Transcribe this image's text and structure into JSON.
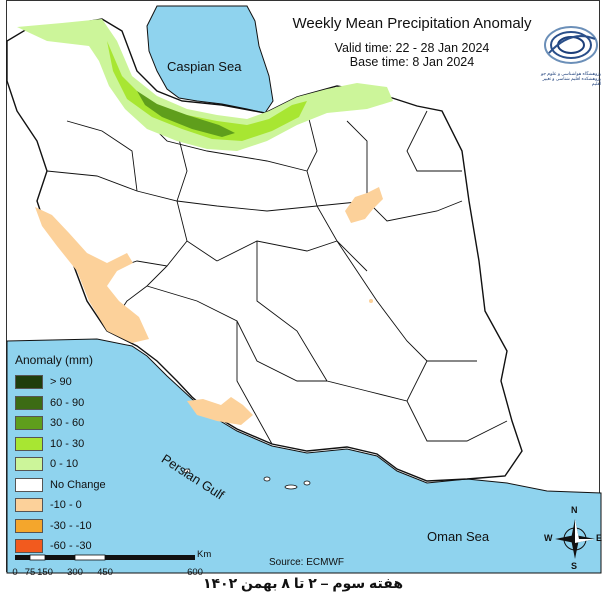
{
  "title": "Weekly Mean Precipitation Anomaly",
  "valid_time": "Valid time: 22 - 28 Jan 2024",
  "base_time": "Base time: 8 Jan 2024",
  "seas": {
    "caspian": "Caspian Sea",
    "persian_gulf": "Persian Gulf",
    "oman": "Oman Sea"
  },
  "legend": {
    "title": "Anomaly (mm)",
    "items": [
      {
        "label": "> 90",
        "color": "#1f3d0c"
      },
      {
        "label": "60 - 90",
        "color": "#3c6b14"
      },
      {
        "label": "30 - 60",
        "color": "#5f9e1c"
      },
      {
        "label": "10 - 30",
        "color": "#a8e632"
      },
      {
        "label": "0 - 10",
        "color": "#ccf59a"
      },
      {
        "label": "No Change",
        "color": "#ffffff"
      },
      {
        "label": "-10 - 0",
        "color": "#fcd19a"
      },
      {
        "label": "-30 - -10",
        "color": "#f4a62c"
      },
      {
        "label": "-60 - -30",
        "color": "#f25a1e"
      }
    ]
  },
  "scale_bar": {
    "ticks": [
      "0",
      "75",
      "150",
      "300",
      "450",
      "600"
    ],
    "unit": "Km"
  },
  "source": "Source: ECMWF",
  "caption": "هفته سوم – ۲ تا ۸ بهمن ۱۴۰۲",
  "logo_text": "پژوهشگاه هواشناسی و علوم جو پژوهشکده اقلیم شناسی و تغییر اقلیم",
  "compass": {
    "n": "N",
    "s": "S",
    "e": "E",
    "w": "W"
  },
  "colors": {
    "sea": "#8fd3ee",
    "border": "#111111"
  }
}
